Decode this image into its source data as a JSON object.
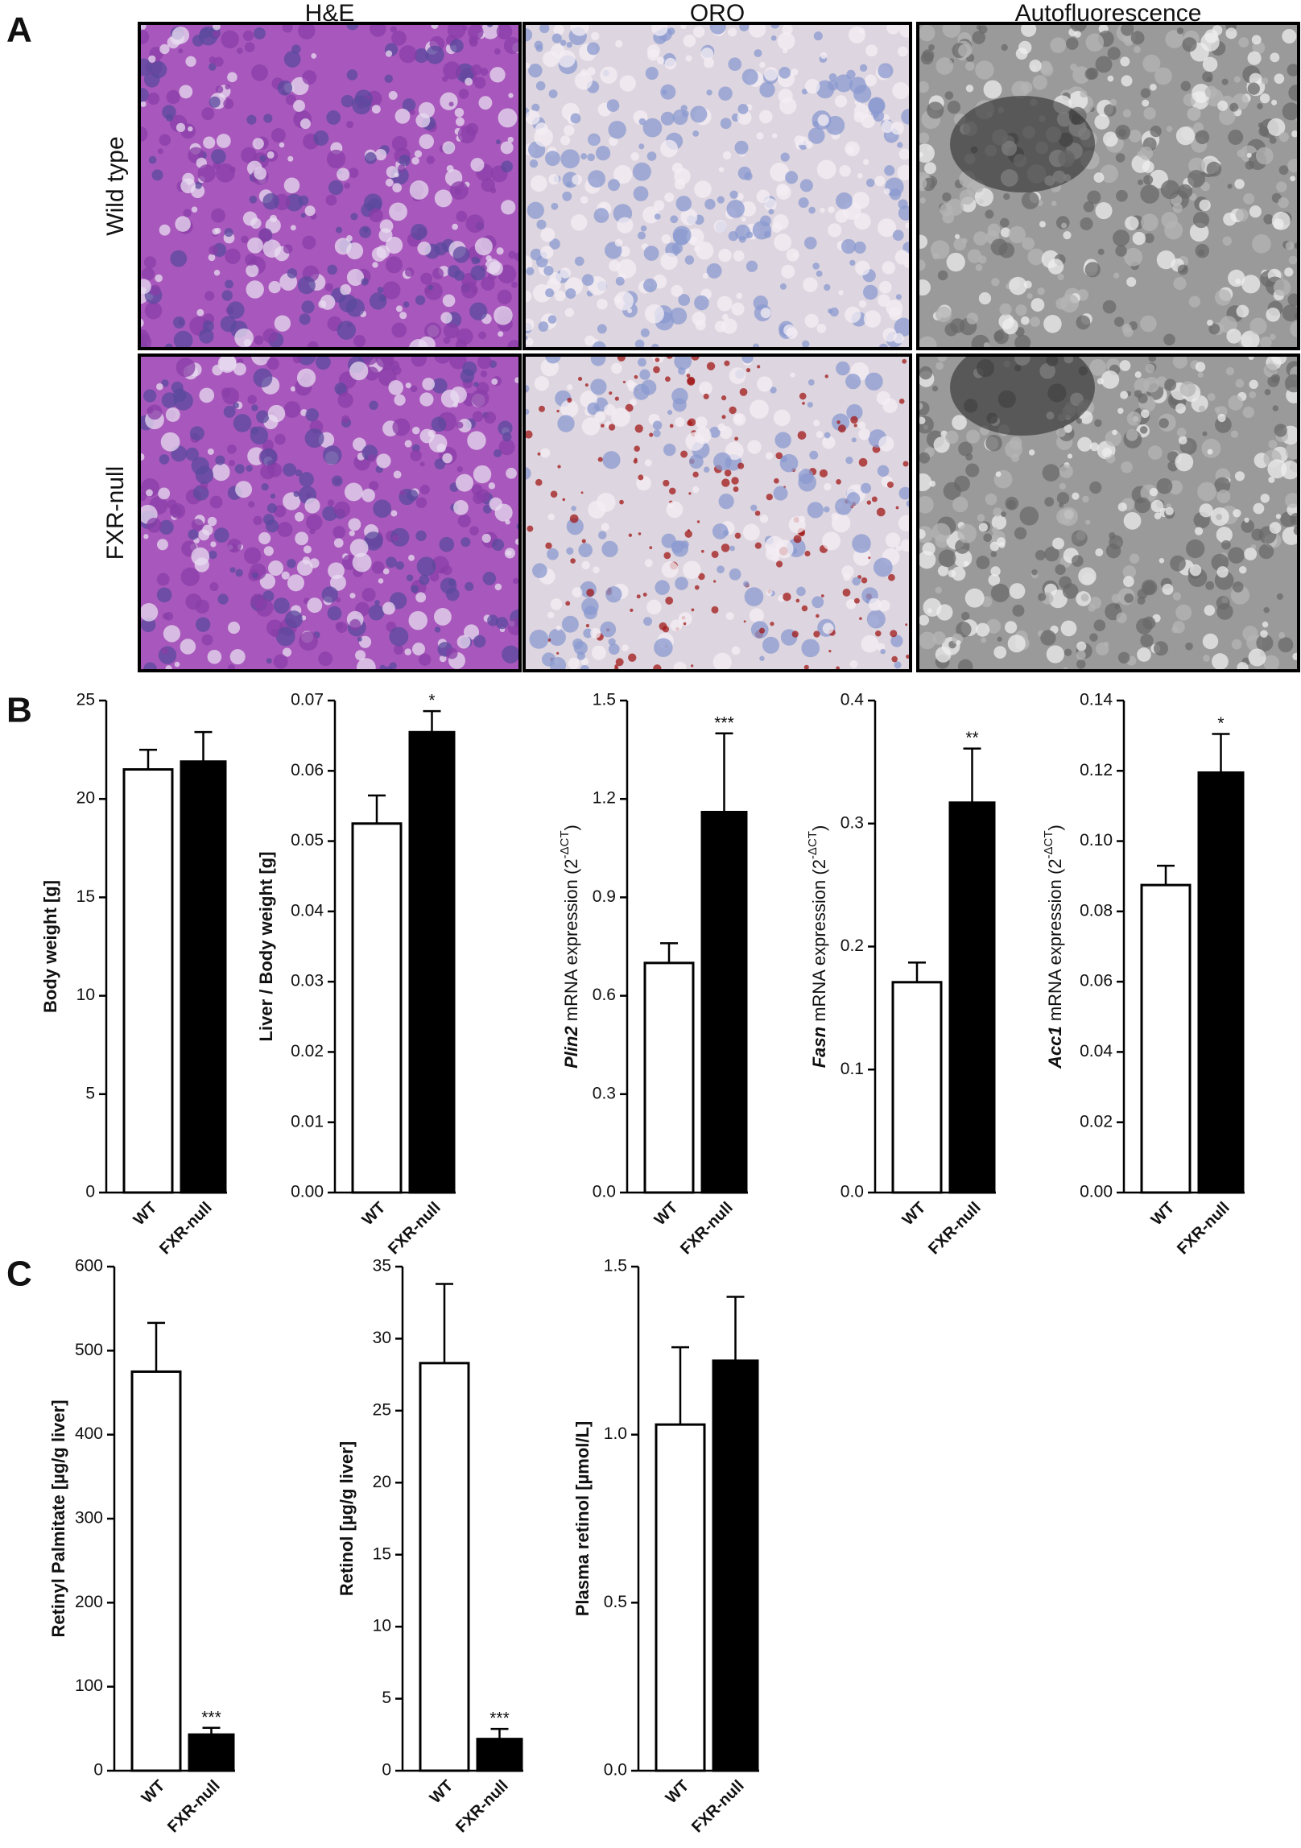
{
  "panel_labels": [
    "A",
    "B",
    "C"
  ],
  "images": {
    "columns": [
      "H&E",
      "ORO",
      "Autofluorescence"
    ],
    "rows": [
      "Wild type",
      "FXR-null"
    ]
  },
  "chart_data": [
    {
      "type": "bar",
      "ylabel": [
        {
          "text": "Body weight [g]",
          "bold": true
        }
      ],
      "categories": [
        "WT",
        "FXR-null"
      ],
      "values": [
        21.5,
        21.9
      ],
      "errors": [
        1.0,
        1.5
      ],
      "significance": [
        null,
        null
      ],
      "colors": [
        "#ffffff",
        "#000000"
      ],
      "ylim": [
        0,
        25
      ],
      "yticks": [
        0,
        5,
        10,
        15,
        20,
        25
      ]
    },
    {
      "type": "bar",
      "ylabel": [
        {
          "text": "Liver / Body weight [g]",
          "bold": true
        }
      ],
      "categories": [
        "WT",
        "FXR-null"
      ],
      "values": [
        0.0525,
        0.0655
      ],
      "errors": [
        0.004,
        0.003
      ],
      "significance": [
        null,
        "*"
      ],
      "colors": [
        "#ffffff",
        "#000000"
      ],
      "ylim": [
        0,
        0.07
      ],
      "yticks": [
        {
          "value": 0,
          "label": "0.00"
        },
        0.01,
        0.02,
        0.03,
        0.04,
        0.05,
        0.06,
        0.07
      ]
    },
    {
      "type": "bar",
      "ylabel": [
        {
          "text": "Plin2",
          "bold": true,
          "italic": true
        },
        {
          "text": " mRNA expression (2"
        },
        {
          "text": "-ΔCT",
          "sup": true
        },
        {
          "text": ")"
        }
      ],
      "categories": [
        "WT",
        "FXR-null"
      ],
      "values": [
        0.7,
        1.16
      ],
      "errors": [
        0.06,
        0.24
      ],
      "significance": [
        null,
        "***"
      ],
      "colors": [
        "#ffffff",
        "#000000"
      ],
      "ylim": [
        0,
        1.5
      ],
      "yticks": [
        {
          "value": 0,
          "label": "0.0"
        },
        0.3,
        0.6,
        0.9,
        1.2,
        1.5
      ]
    },
    {
      "type": "bar",
      "ylabel": [
        {
          "text": "Fasn",
          "bold": true,
          "italic": true
        },
        {
          "text": " mRNA expression (2"
        },
        {
          "text": "-ΔCT",
          "sup": true
        },
        {
          "text": ")"
        }
      ],
      "categories": [
        "WT",
        "FXR-null"
      ],
      "values": [
        0.171,
        0.317
      ],
      "errors": [
        0.016,
        0.044
      ],
      "significance": [
        null,
        "**"
      ],
      "colors": [
        "#ffffff",
        "#000000"
      ],
      "ylim": [
        0,
        0.4
      ],
      "yticks": [
        {
          "value": 0,
          "label": "0.0"
        },
        0.1,
        0.2,
        0.3,
        0.4
      ]
    },
    {
      "type": "bar",
      "ylabel": [
        {
          "text": "Acc1",
          "bold": true,
          "italic": true
        },
        {
          "text": " mRNA expression (2"
        },
        {
          "text": "-ΔCT",
          "sup": true
        },
        {
          "text": ")"
        }
      ],
      "categories": [
        "WT",
        "FXR-null"
      ],
      "values": [
        0.0875,
        0.1195
      ],
      "errors": [
        0.0055,
        0.011
      ],
      "significance": [
        null,
        "*"
      ],
      "colors": [
        "#ffffff",
        "#000000"
      ],
      "ylim": [
        0,
        0.14
      ],
      "yticks": [
        {
          "value": 0,
          "label": "0.00"
        },
        0.02,
        0.04,
        0.06,
        0.08,
        {
          "value": 0.1,
          "label": "0.10"
        },
        0.12,
        0.14
      ]
    },
    {
      "type": "bar",
      "ylabel": [
        {
          "text": "Retinyl Palmitate [µg/g liver]",
          "bold": true
        }
      ],
      "categories": [
        "WT",
        "FXR-null"
      ],
      "values": [
        475,
        43
      ],
      "errors": [
        58,
        8
      ],
      "significance": [
        null,
        "***"
      ],
      "colors": [
        "#ffffff",
        "#000000"
      ],
      "ylim": [
        0,
        600
      ],
      "yticks": [
        0,
        100,
        200,
        300,
        400,
        500,
        600
      ]
    },
    {
      "type": "bar",
      "ylabel": [
        {
          "text": "Retinol [µg/g liver]",
          "bold": true
        }
      ],
      "categories": [
        "WT",
        "FXR-null"
      ],
      "values": [
        28.3,
        2.2
      ],
      "errors": [
        5.5,
        0.7
      ],
      "significance": [
        null,
        "***"
      ],
      "colors": [
        "#ffffff",
        "#000000"
      ],
      "ylim": [
        0,
        35
      ],
      "yticks": [
        0,
        5,
        10,
        15,
        20,
        25,
        30,
        35
      ]
    },
    {
      "type": "bar",
      "ylabel": [
        {
          "text": "Plasma retinol [µmol/L]",
          "bold": true
        }
      ],
      "categories": [
        "WT",
        "FXR-null"
      ],
      "values": [
        1.03,
        1.22
      ],
      "errors": [
        0.23,
        0.19
      ],
      "significance": [
        null,
        null
      ],
      "colors": [
        "#ffffff",
        "#000000"
      ],
      "ylim": [
        0,
        1.5
      ],
      "yticks": [
        {
          "value": 0,
          "label": "0.0"
        },
        0.5,
        {
          "value": 1,
          "label": "1.0"
        },
        1.5
      ]
    }
  ]
}
